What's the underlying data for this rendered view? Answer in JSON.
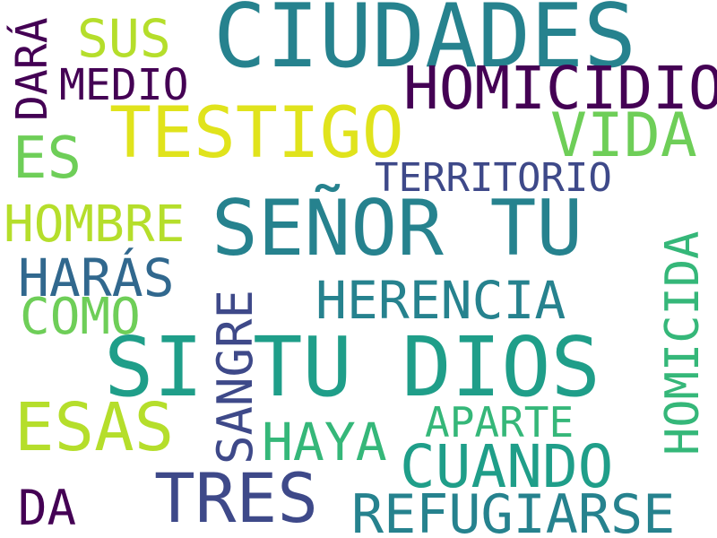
{
  "colors": {
    "background": "#ffffff",
    "dark_purple": "#440154",
    "indigo": "#3e4989",
    "blue_teal": "#31688e",
    "teal": "#26828e",
    "green_teal": "#1f9e89",
    "green": "#35b779",
    "light_green": "#6ece58",
    "yellow_green": "#b5de2b",
    "yellow": "#e0e31c"
  },
  "words": {
    "ciudades": "CIUDADES",
    "homicidio": "HOMICIDIO",
    "testigo": "TESTIGO",
    "sus": "SUS",
    "medio": "MEDIO",
    "dara": "DARÁ",
    "vida": "VIDA",
    "es": "ES",
    "territorio": "TERRITORIO",
    "senor_tu": "SEÑOR TU",
    "hombre": "HOMBRE",
    "haras": "HARÁS",
    "herencia": "HERENCIA",
    "homicida": "HOMICIDA",
    "como": "COMO",
    "sangre": "SANGRE",
    "si_tu_dios": "SI TU DIOS",
    "esas": "ESAS",
    "aparte": "APARTE",
    "haya": "HAYA",
    "cuando": "CUANDO",
    "tres": "TRES",
    "da": "DA",
    "refugiarse": "REFUGIARSE"
  }
}
